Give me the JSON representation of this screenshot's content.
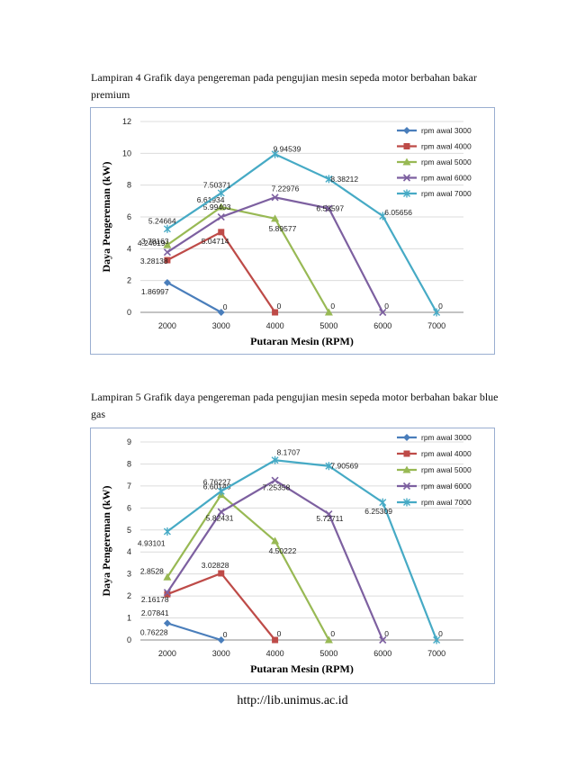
{
  "captions": [
    "Lampiran 4 Grafik daya pengereman pada pengujian mesin sepeda motor berbahan bakar premium",
    "Lampiran 5 Grafik daya pengereman pada pengujian mesin sepeda motor berbahan bakar blue gas"
  ],
  "footer": "http://lib.unimus.ac.id",
  "chart_data": [
    {
      "type": "line",
      "xlabel": "Putaran Mesin (RPM)",
      "ylabel": "Daya Pengereman (kW)",
      "categories": [
        "2000",
        "3000",
        "4000",
        "5000",
        "6000",
        "7000"
      ],
      "ylim": [
        0,
        12
      ],
      "yticks": [
        "0",
        "2",
        "4",
        "6",
        "8",
        "10",
        "12"
      ],
      "grid": true,
      "legend": "right",
      "series": [
        {
          "name": "rpm awal 3000",
          "color": "#4a7ebb",
          "marker": "diamond",
          "x": [
            "2000",
            "3000"
          ],
          "values": [
            1.86997,
            0
          ],
          "labels": [
            "1.86997",
            "0"
          ]
        },
        {
          "name": "rpm awal 4000",
          "color": "#be4b48",
          "marker": "square",
          "x": [
            "2000",
            "3000",
            "4000"
          ],
          "values": [
            3.28138,
            5.04714,
            0
          ],
          "labels": [
            "3.28138",
            "5.04714",
            "0"
          ]
        },
        {
          "name": "rpm awal 5000",
          "color": "#98b954",
          "marker": "triangle",
          "x": [
            "2000",
            "3000",
            "4000",
            "5000"
          ],
          "values": [
            4.24019,
            6.61934,
            5.89577,
            0
          ],
          "labels": [
            "4.24019",
            "6.61934",
            "5.89577",
            "0"
          ]
        },
        {
          "name": "rpm awal 6000",
          "color": "#7d60a0",
          "marker": "x",
          "x": [
            "2000",
            "3000",
            "4000",
            "5000",
            "6000"
          ],
          "values": [
            3.78163,
            5.99403,
            7.22976,
            6.53597,
            0
          ],
          "labels": [
            "3.78163",
            "5.99403",
            "7.22976",
            "6.53597",
            "0"
          ]
        },
        {
          "name": "rpm awal 7000",
          "color": "#46aac5",
          "marker": "star",
          "x": [
            "2000",
            "3000",
            "4000",
            "5000",
            "6000",
            "7000"
          ],
          "values": [
            5.24664,
            7.50371,
            9.94539,
            8.38212,
            6.05656,
            0
          ],
          "labels": [
            "5.24664",
            "7.50371",
            "9.94539",
            "8.38212",
            "6.05656",
            "0"
          ]
        }
      ]
    },
    {
      "type": "line",
      "xlabel": "Putaran Mesin (RPM)",
      "ylabel": "Daya Pengereman (kW)",
      "categories": [
        "2000",
        "3000",
        "4000",
        "5000",
        "6000",
        "7000"
      ],
      "ylim": [
        0,
        9
      ],
      "yticks": [
        "0",
        "1",
        "2",
        "3",
        "4",
        "5",
        "6",
        "7",
        "8",
        "9"
      ],
      "grid": true,
      "legend": "right",
      "series": [
        {
          "name": "rpm awal 3000",
          "color": "#4a7ebb",
          "marker": "diamond",
          "x": [
            "2000",
            "3000"
          ],
          "values": [
            0.76228,
            0
          ],
          "labels": [
            "0.76228",
            "0"
          ]
        },
        {
          "name": "rpm awal 4000",
          "color": "#be4b48",
          "marker": "square",
          "x": [
            "2000",
            "3000",
            "4000"
          ],
          "values": [
            2.07841,
            3.02828,
            0
          ],
          "labels": [
            "2.07841",
            "3.02828",
            "0"
          ]
        },
        {
          "name": "rpm awal 5000",
          "color": "#98b954",
          "marker": "triangle",
          "x": [
            "2000",
            "3000",
            "4000",
            "5000"
          ],
          "values": [
            2.85281,
            6.60148,
            4.50222,
            0
          ],
          "labels": [
            "2.8528",
            "6.60148",
            "4.50222",
            "0"
          ]
        },
        {
          "name": "rpm awal 6000",
          "color": "#7d60a0",
          "marker": "x",
          "x": [
            "2000",
            "3000",
            "4000",
            "5000",
            "6000"
          ],
          "values": [
            2.16178,
            5.82431,
            7.25358,
            5.72711,
            0
          ],
          "labels": [
            "2.16178",
            "5.82431",
            "7.25358",
            "5.72711",
            "0"
          ]
        },
        {
          "name": "rpm awal 7000",
          "color": "#46aac5",
          "marker": "star",
          "x": [
            "2000",
            "3000",
            "4000",
            "5000",
            "6000",
            "7000"
          ],
          "values": [
            4.93101,
            6.76227,
            8.1707,
            7.90569,
            6.25309,
            0
          ],
          "labels": [
            "4.93101",
            "6.76227",
            "8.1707",
            "7.90569",
            "6.25309",
            "0"
          ]
        }
      ]
    }
  ]
}
